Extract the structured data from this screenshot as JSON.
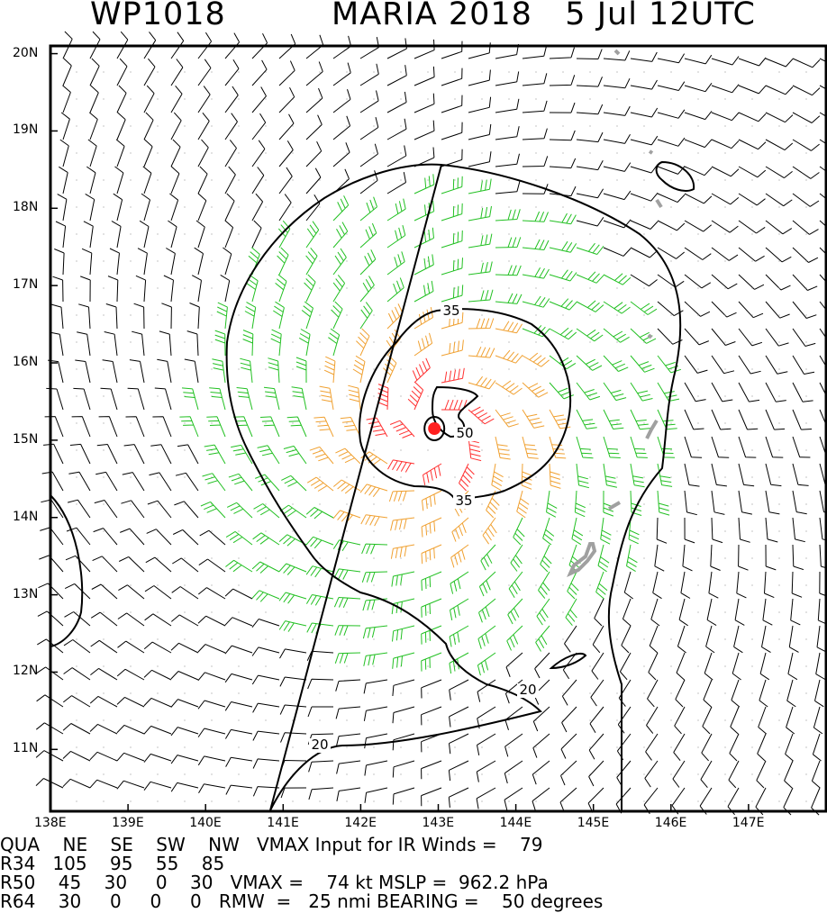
{
  "header": {
    "storm_id": "WP1018",
    "storm_line": "MARIA 2018   5 Jul 12UTC"
  },
  "map": {
    "lon_range": [
      138,
      148
    ],
    "lat_range": [
      10.2,
      20.1
    ],
    "lat_labels": [
      "20N",
      "19N",
      "18N",
      "17N",
      "16N",
      "15N",
      "14N",
      "13N",
      "12N",
      "11N"
    ],
    "lon_labels": [
      "138E",
      "139E",
      "140E",
      "141E",
      "142E",
      "143E",
      "144E",
      "145E",
      "146E",
      "147E"
    ],
    "center": {
      "lon": 142.95,
      "lat": 15.15
    },
    "contour_labels": [
      "35",
      "50",
      "35",
      "20",
      "20"
    ],
    "colors": {
      "barb_low": "#000000",
      "barb_34": "#22c022",
      "barb_50": "#f0a030",
      "barb_64": "#ff3030",
      "contour": "#000000",
      "land": "#a0a0a0",
      "center": "#ff2020"
    }
  },
  "footer": {
    "row1": "QUA    NE    SE    SW    NW   VMAX Input for IR Winds =    79",
    "row2": "R34   105    95    55    85",
    "row3": "R50    45    30     0    30   VMAX =    74 kt MSLP =  962.2 hPa",
    "row4": "R64    30     0     0     0   RMW  =   25 nmi BEARING =    50 degrees"
  }
}
